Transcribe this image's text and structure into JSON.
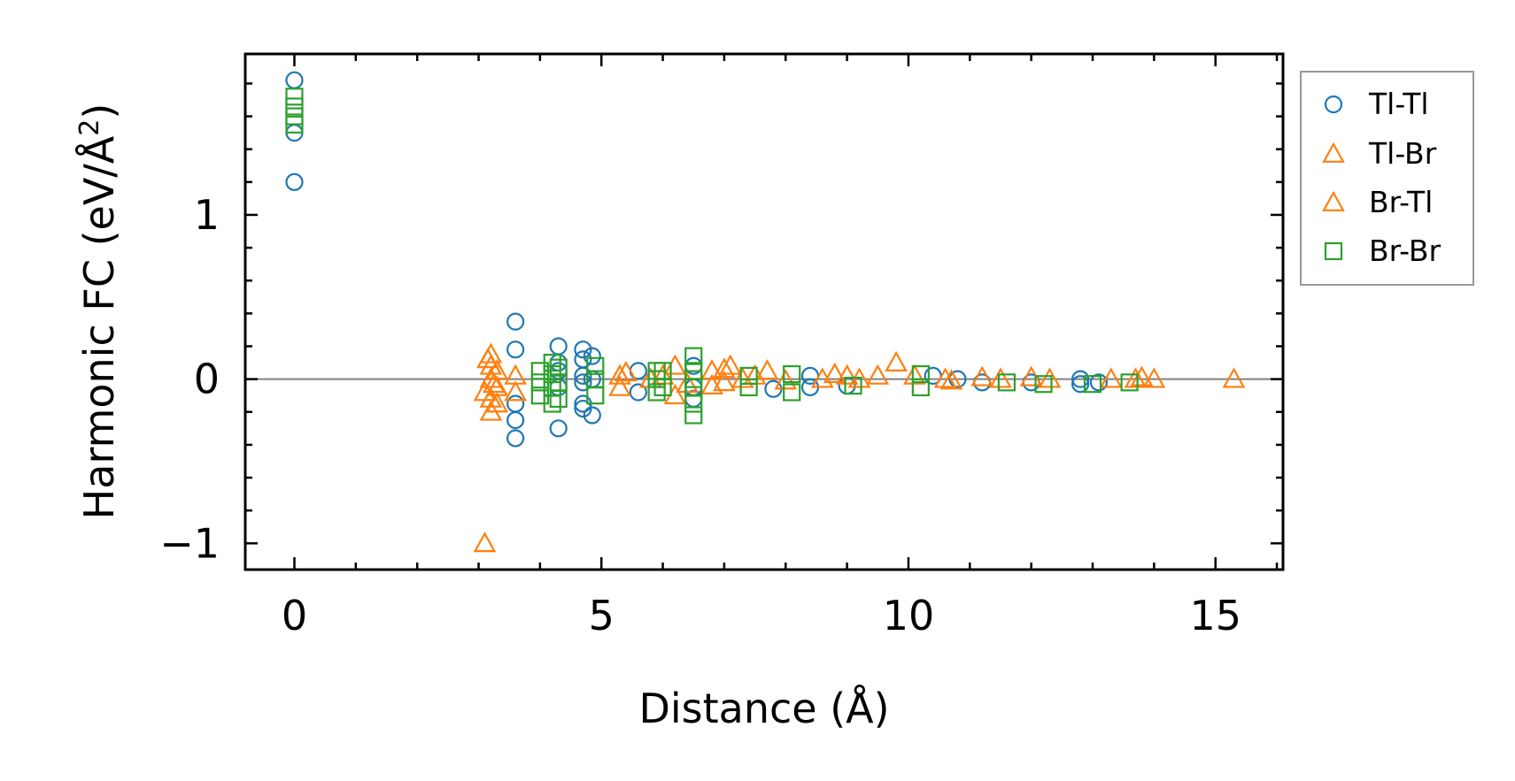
{
  "chart_data": {
    "type": "scatter",
    "title": "",
    "xlabel": "Distance (Å)",
    "ylabel": "Harmonic FC (eV/Å²)",
    "ylabel_base": "Harmonic FC (eV/Å",
    "ylabel_sup": "2",
    "ylabel_end": ")",
    "xlim": [
      -0.8,
      16.1
    ],
    "ylim": [
      -1.16,
      1.98
    ],
    "xticks": [
      0,
      5,
      10,
      15
    ],
    "xtick_labels": [
      "0",
      "5",
      "10",
      "15"
    ],
    "yticks": [
      -1,
      0,
      1
    ],
    "ytick_labels": [
      "−1",
      "0",
      "1"
    ],
    "x_minor_step": 1,
    "y_minor_step": 0.2,
    "zero_line": true,
    "legend_position": "outside-right-top",
    "series": [
      {
        "name": "Tl-Tl",
        "marker": "circle",
        "color": "#1f77b4",
        "points": [
          [
            0,
            1.82
          ],
          [
            0,
            1.5
          ],
          [
            0,
            1.2
          ],
          [
            3.6,
            0.35
          ],
          [
            3.6,
            0.18
          ],
          [
            3.6,
            -0.25
          ],
          [
            3.6,
            -0.36
          ],
          [
            3.6,
            -0.15
          ],
          [
            4.3,
            0.2
          ],
          [
            4.3,
            0.1
          ],
          [
            4.3,
            0.05
          ],
          [
            4.3,
            -0.05
          ],
          [
            4.3,
            -0.3
          ],
          [
            4.7,
            0.18
          ],
          [
            4.7,
            0.12
          ],
          [
            4.7,
            0.02
          ],
          [
            4.7,
            -0.02
          ],
          [
            4.7,
            -0.15
          ],
          [
            4.7,
            -0.18
          ],
          [
            4.85,
            0.14
          ],
          [
            4.85,
            0.0
          ],
          [
            4.85,
            -0.22
          ],
          [
            5.6,
            0.05
          ],
          [
            5.6,
            -0.08
          ],
          [
            6.5,
            0.08
          ],
          [
            6.5,
            -0.05
          ],
          [
            6.5,
            -0.12
          ],
          [
            7.8,
            -0.06
          ],
          [
            8.4,
            0.02
          ],
          [
            8.4,
            -0.05
          ],
          [
            9.0,
            -0.04
          ],
          [
            10.4,
            0.02
          ],
          [
            10.8,
            0.0
          ],
          [
            11.2,
            -0.02
          ],
          [
            12.0,
            -0.02
          ],
          [
            12.8,
            0.0
          ],
          [
            12.8,
            -0.03
          ],
          [
            13.1,
            -0.02
          ]
        ]
      },
      {
        "name": "Tl-Br",
        "marker": "triangle",
        "color": "#ff7f0e",
        "points": [
          [
            3.1,
            -1.0
          ],
          [
            3.2,
            0.15
          ],
          [
            3.2,
            0.08
          ],
          [
            3.2,
            0.0
          ],
          [
            3.2,
            -0.12
          ],
          [
            3.2,
            -0.2
          ],
          [
            3.3,
            0.05
          ],
          [
            3.3,
            -0.05
          ],
          [
            3.3,
            -0.15
          ],
          [
            3.6,
            0.02
          ],
          [
            3.6,
            -0.08
          ],
          [
            5.3,
            0.02
          ],
          [
            5.3,
            -0.05
          ],
          [
            5.8,
            0.0
          ],
          [
            6.2,
            0.08
          ],
          [
            6.2,
            -0.1
          ],
          [
            6.8,
            0.05
          ],
          [
            6.8,
            -0.04
          ],
          [
            7.0,
            0.06
          ],
          [
            7.0,
            -0.02
          ],
          [
            7.3,
            0.0
          ],
          [
            7.7,
            0.05
          ],
          [
            8.6,
            0.0
          ],
          [
            9.0,
            0.02
          ],
          [
            9.5,
            0.02
          ],
          [
            9.8,
            0.1
          ],
          [
            10.6,
            0.0
          ],
          [
            11.2,
            0.01
          ],
          [
            12.3,
            0.0
          ],
          [
            13.7,
            0.0
          ],
          [
            14.0,
            0.0
          ],
          [
            15.3,
            0.0
          ]
        ]
      },
      {
        "name": "Br-Tl",
        "marker": "triangle",
        "color": "#ff7f0e",
        "points": [
          [
            3.1,
            -0.08
          ],
          [
            3.15,
            0.12
          ],
          [
            3.25,
            -0.03
          ],
          [
            5.4,
            0.04
          ],
          [
            6.0,
            0.02
          ],
          [
            6.4,
            -0.03
          ],
          [
            7.1,
            0.08
          ],
          [
            7.5,
            0.02
          ],
          [
            8.0,
            -0.01
          ],
          [
            8.8,
            0.03
          ],
          [
            9.2,
            0.0
          ],
          [
            10.1,
            0.02
          ],
          [
            10.7,
            -0.01
          ],
          [
            11.5,
            0.0
          ],
          [
            12.0,
            0.01
          ],
          [
            13.3,
            0.0
          ],
          [
            13.8,
            0.01
          ]
        ]
      },
      {
        "name": "Br-Br",
        "marker": "square",
        "color": "#2ca02c",
        "points": [
          [
            0,
            1.72
          ],
          [
            0,
            1.66
          ],
          [
            0,
            1.6
          ],
          [
            0,
            1.55
          ],
          [
            4.0,
            0.05
          ],
          [
            4.0,
            -0.02
          ],
          [
            4.0,
            -0.1
          ],
          [
            4.2,
            0.1
          ],
          [
            4.2,
            0.03
          ],
          [
            4.2,
            -0.05
          ],
          [
            4.2,
            -0.15
          ],
          [
            4.3,
            0.07
          ],
          [
            4.3,
            -0.02
          ],
          [
            4.3,
            -0.12
          ],
          [
            4.9,
            0.08
          ],
          [
            4.9,
            0.0
          ],
          [
            4.9,
            -0.1
          ],
          [
            5.9,
            0.05
          ],
          [
            5.9,
            0.0
          ],
          [
            5.9,
            -0.08
          ],
          [
            6.0,
            0.05
          ],
          [
            6.0,
            -0.05
          ],
          [
            6.5,
            0.14
          ],
          [
            6.5,
            0.05
          ],
          [
            6.5,
            0.0
          ],
          [
            6.5,
            -0.05
          ],
          [
            6.5,
            -0.15
          ],
          [
            6.5,
            -0.22
          ],
          [
            7.4,
            0.02
          ],
          [
            7.4,
            -0.05
          ],
          [
            8.1,
            0.03
          ],
          [
            8.1,
            -0.08
          ],
          [
            9.1,
            -0.04
          ],
          [
            10.2,
            0.03
          ],
          [
            10.2,
            -0.05
          ],
          [
            11.6,
            -0.02
          ],
          [
            12.2,
            -0.03
          ],
          [
            13.0,
            -0.03
          ],
          [
            13.6,
            -0.02
          ]
        ]
      }
    ],
    "legend": [
      "Tl-Tl",
      "Tl-Br",
      "Br-Tl",
      "Br-Br"
    ]
  },
  "colors": {
    "zero_line": "#808080",
    "axis": "#000000",
    "legend_border": "#999999"
  }
}
